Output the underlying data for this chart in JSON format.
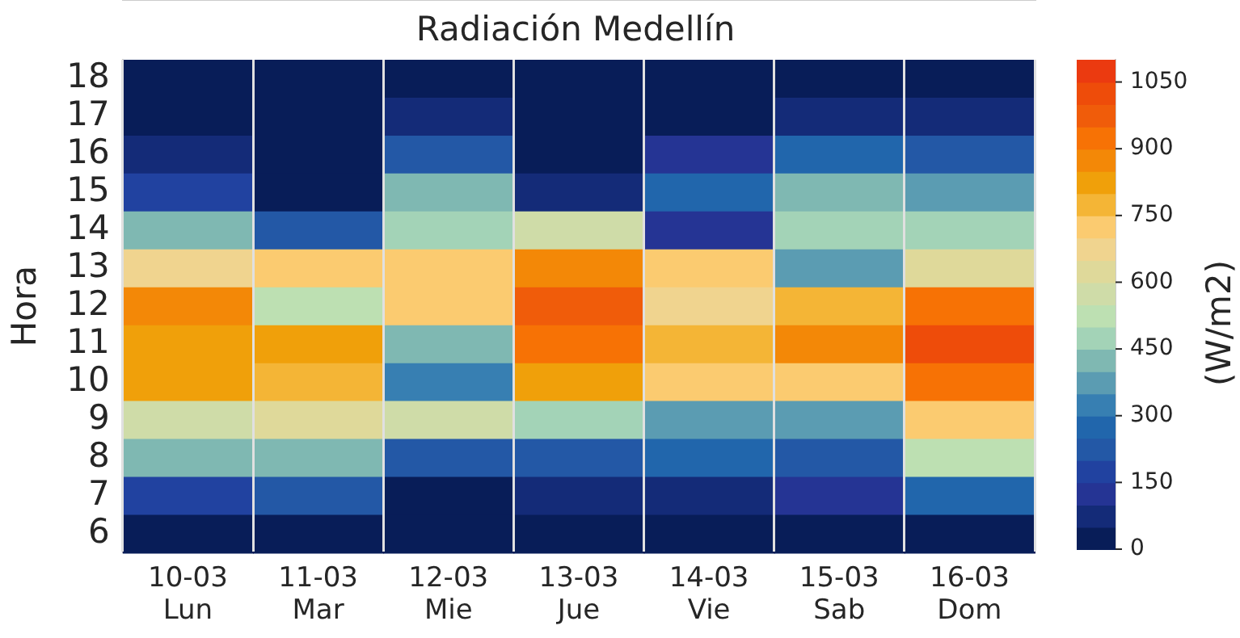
{
  "chart_data": {
    "type": "heatmap",
    "title": "Radiación Medellín",
    "ylabel": "Hora",
    "clabel": "(W/m2)",
    "categories": [
      "10-03\nLun",
      "11-03\nMar",
      "12-03\nMie",
      "13-03\nJue",
      "14-03\nVie",
      "15-03\nSab",
      "16-03\nDom"
    ],
    "y_categories": [
      "18",
      "17",
      "16",
      "15",
      "14",
      "13",
      "12",
      "11",
      "10",
      "9",
      "8",
      "7",
      "6"
    ],
    "cells": [
      [
        25,
        25,
        25,
        25,
        25,
        25,
        25
      ],
      [
        25,
        25,
        75,
        25,
        25,
        75,
        75
      ],
      [
        75,
        25,
        225,
        25,
        125,
        275,
        225
      ],
      [
        175,
        25,
        425,
        75,
        275,
        425,
        375
      ],
      [
        425,
        225,
        475,
        575,
        125,
        475,
        475
      ],
      [
        675,
        725,
        725,
        875,
        725,
        375,
        625
      ],
      [
        875,
        525,
        725,
        975,
        675,
        775,
        925
      ],
      [
        825,
        825,
        425,
        925,
        775,
        875,
        1025
      ],
      [
        825,
        775,
        325,
        825,
        725,
        725,
        925
      ],
      [
        575,
        625,
        575,
        475,
        375,
        375,
        725
      ],
      [
        425,
        425,
        225,
        225,
        275,
        225,
        525
      ],
      [
        175,
        225,
        25,
        75,
        75,
        125,
        275
      ],
      [
        25,
        25,
        25,
        25,
        25,
        25,
        25
      ]
    ],
    "clim": [
      0,
      1100
    ],
    "cticks": [
      0,
      150,
      300,
      450,
      600,
      750,
      900,
      1050
    ],
    "grid": "x"
  }
}
